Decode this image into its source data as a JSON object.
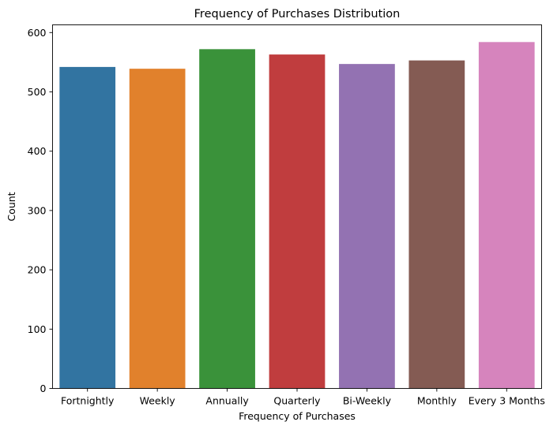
{
  "chart_data": {
    "type": "bar",
    "title": "Frequency of Purchases Distribution",
    "xlabel": "Frequency of Purchases",
    "ylabel": "Count",
    "categories": [
      "Fortnightly",
      "Weekly",
      "Annually",
      "Quarterly",
      "Bi-Weekly",
      "Monthly",
      "Every 3 Months"
    ],
    "values": [
      542,
      539,
      572,
      563,
      547,
      553,
      584
    ],
    "colors": [
      "#3274a1",
      "#e1812c",
      "#3a923a",
      "#c03d3e",
      "#9372b2",
      "#845b53",
      "#d684bd"
    ],
    "ylim": [
      0,
      613
    ],
    "yticks": [
      0,
      100,
      200,
      300,
      400,
      500,
      600
    ],
    "ytick_labels": [
      "0",
      "100",
      "200",
      "300",
      "400",
      "500",
      "600"
    ],
    "grid": false,
    "legend": false
  }
}
